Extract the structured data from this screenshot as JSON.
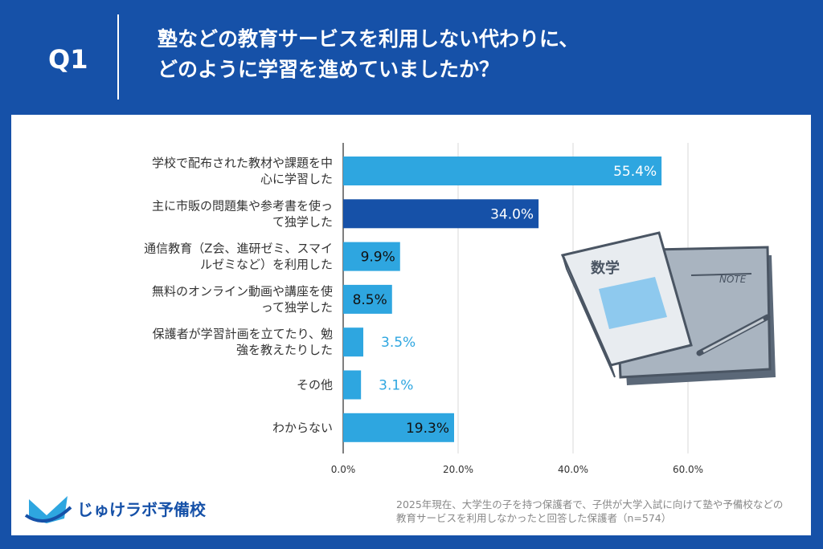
{
  "header": {
    "q_label": "Q1",
    "title_line1": "塾などの教育サービスを利用しない代わりに、",
    "title_line2": "どのように学習を進めていましたか？"
  },
  "chart_data": {
    "type": "bar",
    "orientation": "horizontal",
    "categories": [
      [
        "学校で配布された教材や課題を中",
        "心に学習した"
      ],
      [
        "主に市販の問題集や参考書を使っ",
        "て独学した"
      ],
      [
        "通信教育（Z会、進研ゼミ、スマイ",
        "ルゼミなど）を利用した"
      ],
      [
        "無料のオンライン動画や講座を使",
        "って独学した"
      ],
      [
        "保護者が学習計画を立てたり、勉",
        "強を教えたりした"
      ],
      [
        "その他"
      ],
      [
        "わからない"
      ]
    ],
    "values": [
      55.4,
      34.0,
      9.9,
      8.5,
      3.5,
      3.1,
      19.3
    ],
    "value_labels": [
      "55.4%",
      "34.0%",
      "9.9%",
      "8.5%",
      "3.5%",
      "3.1%",
      "19.3%"
    ],
    "bar_colors": [
      "#2ea6e0",
      "#1651a8",
      "#2ea6e0",
      "#2ea6e0",
      "#2ea6e0",
      "#2ea6e0",
      "#2ea6e0"
    ],
    "xlim": [
      0,
      80
    ],
    "xticks": [
      "0.0%",
      "20.0%",
      "40.0%",
      "60.0%"
    ],
    "grid": true
  },
  "footer": {
    "logo_text": "じゅけラボ予備校",
    "note_line1": "2025年現在、大学生の子を持つ保護者で、子供が大学入試に向けて塾や予備校などの",
    "note_line2": "教育サービスを利用しなかったと回答した保護者（n=574）"
  },
  "illustration": {
    "book_title": "数学",
    "notebook_label": "NOTE"
  }
}
